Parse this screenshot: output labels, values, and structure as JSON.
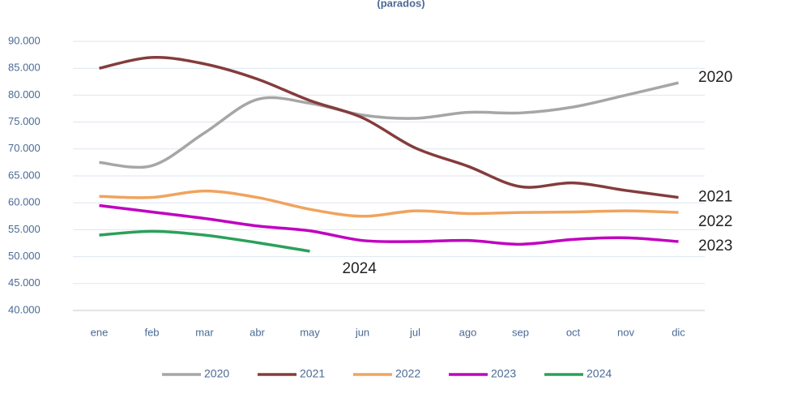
{
  "chart_data": {
    "type": "line",
    "subtitle": "(parados)",
    "categories": [
      "ene",
      "feb",
      "mar",
      "abr",
      "may",
      "jun",
      "jul",
      "ago",
      "sep",
      "oct",
      "nov",
      "dic"
    ],
    "series": [
      {
        "name": "2020",
        "color": "#a6a6a6",
        "values": [
          67500,
          66900,
          73000,
          79200,
          78500,
          76300,
          75700,
          76800,
          76700,
          77800,
          80000,
          82300
        ]
      },
      {
        "name": "2021",
        "color": "#843c3c",
        "values": [
          85000,
          87000,
          85800,
          83000,
          79000,
          75800,
          70200,
          66800,
          63000,
          63700,
          62300,
          61000
        ]
      },
      {
        "name": "2022",
        "color": "#f0a35e",
        "values": [
          61200,
          61000,
          62200,
          61000,
          58800,
          57500,
          58500,
          58000,
          58200,
          58300,
          58500,
          58200
        ]
      },
      {
        "name": "2023",
        "color": "#c000c0",
        "values": [
          59500,
          58300,
          57100,
          55700,
          54800,
          53000,
          52800,
          53000,
          52300,
          53200,
          53500,
          52800
        ]
      },
      {
        "name": "2024",
        "color": "#2ca05a",
        "values": [
          54000,
          54700,
          54000,
          52600,
          51000,
          null,
          null,
          null,
          null,
          null,
          null,
          null
        ]
      }
    ],
    "ylim": [
      40000,
      90000
    ],
    "yticks": [
      {
        "value": 40000,
        "label": "40.000"
      },
      {
        "value": 45000,
        "label": "45.000"
      },
      {
        "value": 50000,
        "label": "50.000"
      },
      {
        "value": 55000,
        "label": "55.000"
      },
      {
        "value": 60000,
        "label": "60.000"
      },
      {
        "value": 65000,
        "label": "65.000"
      },
      {
        "value": 70000,
        "label": "70.000"
      },
      {
        "value": 75000,
        "label": "75.000"
      },
      {
        "value": 80000,
        "label": "80.000"
      },
      {
        "value": 85000,
        "label": "85.000"
      },
      {
        "value": 90000,
        "label": "90.000"
      }
    ],
    "grid": true,
    "legend": "bottom"
  }
}
